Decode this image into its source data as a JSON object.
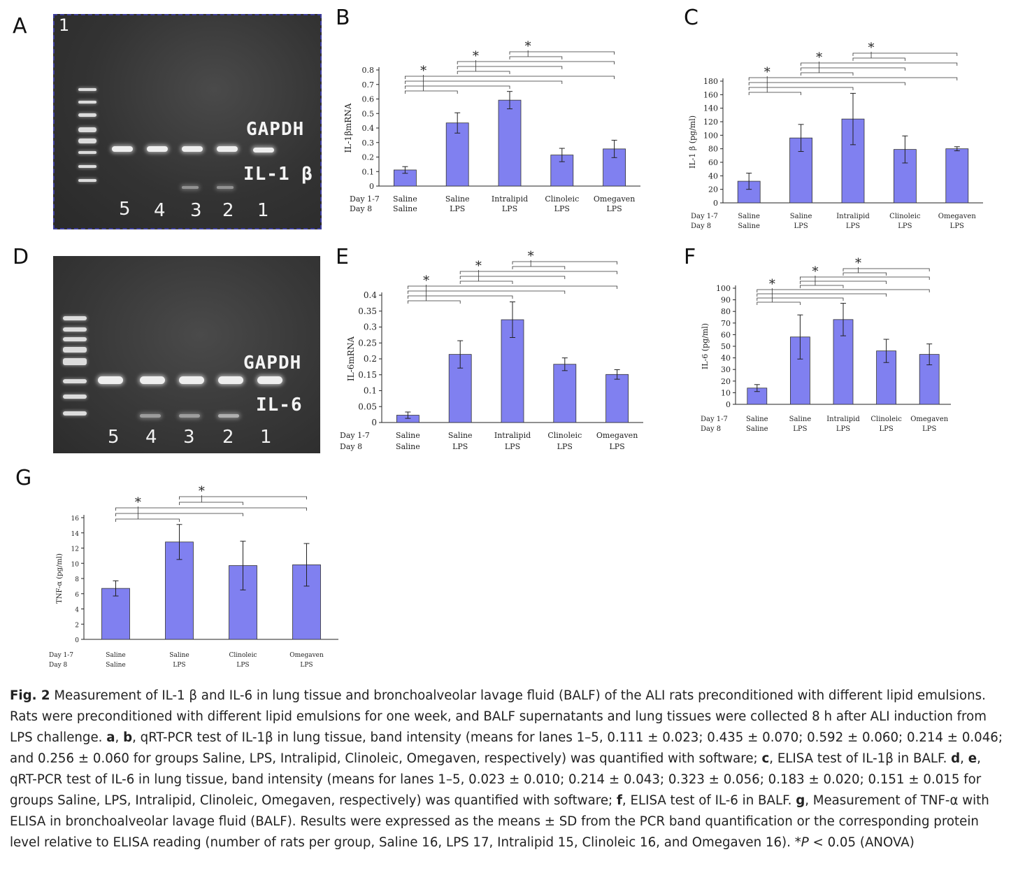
{
  "panels": {
    "a": "A",
    "b": "B",
    "c": "C",
    "d": "D",
    "e": "E",
    "f": "F",
    "g": "G"
  },
  "gel_a": {
    "corner_number": "1",
    "gapdh_label": "GAPDH",
    "target_label": "IL-1 β",
    "lane_numbers": [
      "5",
      "4",
      "3",
      "2",
      "1"
    ]
  },
  "gel_d": {
    "gapdh_label": "GAPDH",
    "target_label": "IL-6",
    "lane_numbers": [
      "5",
      "4",
      "3",
      "2",
      "1"
    ]
  },
  "chart_data": [
    {
      "id": "B",
      "type": "bar",
      "ylabel": "IL-1βmRNA",
      "ylim": [
        0,
        0.8
      ],
      "yticks": [
        0,
        0.1,
        0.2,
        0.3,
        0.4,
        0.5,
        0.6,
        0.7,
        0.8
      ],
      "ytick_labels": [
        "0",
        "0.1",
        "0.2",
        "0.3",
        "0.4",
        "0.5",
        "0.6",
        "0.7",
        "0.8"
      ],
      "row_labels": [
        "Day 1-7",
        "Day 8"
      ],
      "categories": [
        [
          "Saline",
          "Saline"
        ],
        [
          "Saline",
          "LPS"
        ],
        [
          "Intralipid",
          "LPS"
        ],
        [
          "Clinoleic",
          "LPS"
        ],
        [
          "Omegaven",
          "LPS"
        ]
      ],
      "values": [
        0.111,
        0.435,
        0.592,
        0.214,
        0.256
      ],
      "errors": [
        0.023,
        0.07,
        0.06,
        0.046,
        0.06
      ],
      "bar_color": "#8080f0",
      "brackets": [
        [
          0,
          1
        ],
        [
          0,
          2
        ],
        [
          0,
          3
        ],
        [
          0,
          4
        ],
        [
          1,
          2
        ],
        [
          1,
          3
        ],
        [
          1,
          4
        ],
        [
          2,
          3
        ],
        [
          2,
          4
        ]
      ],
      "star_label": "*",
      "grid": false
    },
    {
      "id": "C",
      "type": "bar",
      "ylabel": "IL-1 β (pg/ml)",
      "ylim": [
        0,
        180
      ],
      "yticks": [
        0,
        20,
        40,
        60,
        80,
        100,
        120,
        140,
        160,
        180
      ],
      "ytick_labels": [
        "0",
        "20",
        "40",
        "60",
        "80",
        "100",
        "120",
        "140",
        "160",
        "180"
      ],
      "row_labels": [
        "Day 1-7",
        "Day 8"
      ],
      "categories": [
        [
          "Saline",
          "Saline"
        ],
        [
          "Saline",
          "LPS"
        ],
        [
          "Intralipid",
          "LPS"
        ],
        [
          "Clinoleic",
          "LPS"
        ],
        [
          "Omegaven",
          "LPS"
        ]
      ],
      "values": [
        32,
        96,
        124,
        79,
        80
      ],
      "errors": [
        12,
        20,
        38,
        20,
        3
      ],
      "bar_color": "#8080f0",
      "brackets": [
        [
          0,
          1
        ],
        [
          0,
          2
        ],
        [
          0,
          3
        ],
        [
          0,
          4
        ],
        [
          1,
          2
        ],
        [
          1,
          3
        ],
        [
          1,
          4
        ],
        [
          2,
          3
        ],
        [
          2,
          4
        ]
      ],
      "star_label": "*",
      "grid": false
    },
    {
      "id": "E",
      "type": "bar",
      "ylabel": "IL-6mRNA",
      "ylim": [
        0,
        0.4
      ],
      "yticks": [
        0,
        0.05,
        0.1,
        0.15,
        0.2,
        0.25,
        0.3,
        0.35,
        0.4
      ],
      "ytick_labels": [
        "0",
        "0.05",
        "0.1",
        "0.15",
        "0.2",
        "0.25",
        "0.3",
        "0.35",
        "0.4"
      ],
      "row_labels": [
        "Day 1-7",
        "Day 8"
      ],
      "categories": [
        [
          "Saline",
          "Saline"
        ],
        [
          "Saline",
          "LPS"
        ],
        [
          "Intralipid",
          "LPS"
        ],
        [
          "Clinoleic",
          "LPS"
        ],
        [
          "Omegaven",
          "LPS"
        ]
      ],
      "values": [
        0.023,
        0.214,
        0.323,
        0.183,
        0.151
      ],
      "errors": [
        0.01,
        0.043,
        0.056,
        0.02,
        0.015
      ],
      "bar_color": "#8080f0",
      "brackets": [
        [
          0,
          1
        ],
        [
          0,
          2
        ],
        [
          0,
          3
        ],
        [
          0,
          4
        ],
        [
          1,
          2
        ],
        [
          1,
          3
        ],
        [
          1,
          4
        ],
        [
          2,
          3
        ],
        [
          2,
          4
        ]
      ],
      "star_label": "*",
      "grid": false
    },
    {
      "id": "F",
      "type": "bar",
      "ylabel": "IL-6 (pg/ml)",
      "ylim": [
        0,
        100
      ],
      "yticks": [
        0,
        10,
        20,
        30,
        40,
        50,
        60,
        70,
        80,
        90,
        100
      ],
      "ytick_labels": [
        "0",
        "10",
        "20",
        "30",
        "40",
        "50",
        "60",
        "70",
        "80",
        "90",
        "100"
      ],
      "row_labels": [
        "Day 1-7",
        "Day 8"
      ],
      "categories": [
        [
          "Saline",
          "Saline"
        ],
        [
          "Saline",
          "LPS"
        ],
        [
          "Intralipid",
          "LPS"
        ],
        [
          "Clinoleic",
          "LPS"
        ],
        [
          "Omegaven",
          "LPS"
        ]
      ],
      "values": [
        14,
        58,
        73,
        46,
        43
      ],
      "errors": [
        3,
        19,
        14,
        10,
        9
      ],
      "bar_color": "#8080f0",
      "brackets": [
        [
          0,
          1
        ],
        [
          0,
          2
        ],
        [
          0,
          3
        ],
        [
          0,
          4
        ],
        [
          1,
          2
        ],
        [
          1,
          3
        ],
        [
          1,
          4
        ],
        [
          2,
          3
        ],
        [
          2,
          4
        ]
      ],
      "star_label": "*",
      "grid": false
    },
    {
      "id": "G",
      "type": "bar",
      "ylabel": "TNF-α (pg/ml)",
      "ylim": [
        0,
        16
      ],
      "yticks": [
        0,
        2,
        4,
        6,
        8,
        10,
        12,
        14,
        16
      ],
      "ytick_labels": [
        "0",
        "2",
        "4",
        "6",
        "8",
        "10",
        "12",
        "14",
        "16"
      ],
      "row_labels": [
        "Day 1-7",
        "Day 8"
      ],
      "categories": [
        [
          "Saline",
          "Saline"
        ],
        [
          "Saline",
          "LPS"
        ],
        [
          "Clinoleic",
          "LPS"
        ],
        [
          "Omegaven",
          "LPS"
        ]
      ],
      "values": [
        6.7,
        12.8,
        9.7,
        9.8
      ],
      "errors": [
        1.0,
        2.3,
        3.2,
        2.8
      ],
      "bar_color": "#8080f0",
      "brackets": [
        [
          0,
          1
        ],
        [
          0,
          2
        ],
        [
          0,
          3
        ],
        [
          1,
          2
        ],
        [
          1,
          3
        ]
      ],
      "star_label": "*",
      "grid": false
    }
  ],
  "caption": {
    "fig_label": "Fig. 2",
    "p1": " Measurement of IL-1 β and IL-6 in lung tissue and bronchoalveolar lavage fluid (BALF) of the ALI rats preconditioned with different lipid emulsions. Rats were preconditioned with different lipid emulsions for one week, and BALF supernatants and lung tissues were collected 8 h after ALI induction from LPS challenge. ",
    "a": "a",
    "comma1": ", ",
    "b": "b",
    "p2": ", qRT-PCR test of IL-1β in lung tissue, band intensity (means for lanes 1–5, 0.111 ± 0.023; 0.435 ± 0.070; 0.592 ± 0.060; 0.214 ± 0.046; and 0.256 ± 0.060 for groups Saline, LPS, Intralipid, Clinoleic, Omegaven, respectively) was quantified with software; ",
    "c": "c",
    "p3": ", ELISA test of IL-1β in BALF. ",
    "d": "d",
    "comma2": ", ",
    "e": "e",
    "p4": ", qRT-PCR test of IL-6 in lung tissue, band intensity (means for lanes 1–5, 0.023 ± 0.010; 0.214 ± 0.043; 0.323 ± 0.056; 0.183 ± 0.020; 0.151 ± 0.015 for groups Saline, LPS, Intralipid, Clinoleic, Omegaven, respectively) was quantified with software; ",
    "f": "f",
    "p5": ", ELISA test of IL-6 in BALF. ",
    "g": "g",
    "p6": ", Measurement of TNF-α with ELISA in bronchoalveolar lavage fluid (BALF). Results were expressed as the means ± SD from the PCR band quantification or the corresponding protein level relative to ELISA reading (number of rats per group, Saline 16, LPS 17, Intralipid 15, Clinoleic 16, and Omegaven 16). *",
    "p_italic": "P",
    "p7": " < 0.05 (ANOVA)"
  }
}
